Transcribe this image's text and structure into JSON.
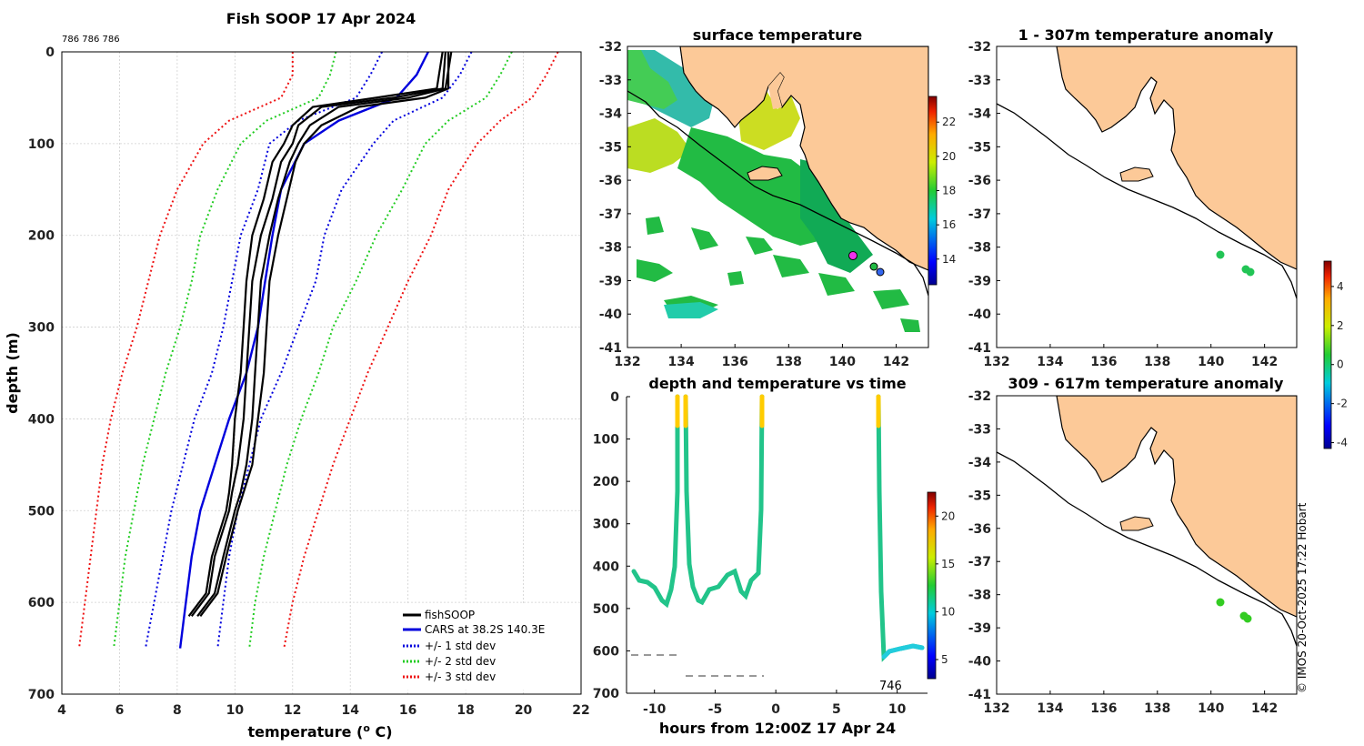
{
  "chart_data": [
    {
      "type": "line",
      "title": "Fish SOOP 17 Apr 2024",
      "annotation": "786 786 786",
      "xlabel": "temperature (",
      "xlabel_sup": "o",
      "xlabel_unit": " C)",
      "ylabel": "depth (m)",
      "xlim": [
        4,
        22
      ],
      "ylim": [
        700,
        0
      ],
      "xticks": [
        4,
        6,
        8,
        10,
        12,
        14,
        16,
        18,
        20,
        22
      ],
      "yticks": [
        0,
        100,
        200,
        300,
        400,
        500,
        600,
        700
      ],
      "grid": true,
      "legend_position": "bottom-right",
      "legend": [
        "fishSOOP",
        "CARS at 38.2S 140.3E",
        "+/- 1 std dev",
        "+/- 2 std dev",
        "+/- 3 std dev"
      ],
      "series": [
        {
          "name": "CARS mean",
          "depth": [
            0,
            25,
            50,
            75,
            100,
            150,
            200,
            250,
            300,
            350,
            400,
            450,
            500,
            550,
            600,
            650
          ],
          "values": [
            16.7,
            16.3,
            15.6,
            13.6,
            12.4,
            11.6,
            11.3,
            11.05,
            10.8,
            10.4,
            9.8,
            9.3,
            8.8,
            8.5,
            8.3,
            8.1
          ]
        },
        {
          "name": "-1 std",
          "depth": [
            0,
            25,
            50,
            75,
            100,
            150,
            200,
            250,
            300,
            350,
            400,
            450,
            500,
            550,
            600,
            650
          ],
          "values": [
            15.1,
            14.7,
            14.2,
            12.2,
            11.2,
            10.8,
            10.2,
            9.9,
            9.6,
            9.2,
            8.6,
            8.2,
            7.8,
            7.5,
            7.2,
            6.9
          ]
        },
        {
          "name": "+1 std",
          "depth": [
            0,
            25,
            50,
            75,
            100,
            150,
            200,
            250,
            300,
            350,
            400,
            450,
            500,
            550,
            600,
            650
          ],
          "values": [
            18.2,
            17.8,
            17.2,
            15.5,
            14.8,
            13.7,
            13.1,
            12.8,
            12.2,
            11.6,
            10.9,
            10.5,
            10.1,
            9.8,
            9.6,
            9.4
          ]
        },
        {
          "name": "-2 std",
          "depth": [
            0,
            25,
            50,
            75,
            100,
            150,
            200,
            250,
            300,
            350,
            400,
            450,
            500,
            550,
            600,
            650
          ],
          "values": [
            13.5,
            13.3,
            12.9,
            11.1,
            10.2,
            9.4,
            8.8,
            8.5,
            8.1,
            7.6,
            7.2,
            6.8,
            6.5,
            6.2,
            6.0,
            5.8
          ]
        },
        {
          "name": "+2 std",
          "depth": [
            0,
            25,
            50,
            75,
            100,
            150,
            200,
            250,
            300,
            350,
            400,
            450,
            500,
            550,
            600,
            650
          ],
          "values": [
            19.6,
            19.2,
            18.7,
            17.4,
            16.6,
            15.8,
            14.9,
            14.2,
            13.4,
            12.9,
            12.3,
            11.8,
            11.4,
            11.0,
            10.7,
            10.5
          ]
        },
        {
          "name": "-3 std",
          "depth": [
            0,
            25,
            50,
            75,
            100,
            150,
            200,
            250,
            300,
            350,
            400,
            450,
            500,
            550,
            600,
            650
          ],
          "values": [
            12.0,
            12.0,
            11.6,
            9.8,
            8.9,
            8.0,
            7.4,
            7.0,
            6.6,
            6.1,
            5.7,
            5.4,
            5.2,
            5.0,
            4.8,
            4.6
          ]
        },
        {
          "name": "+3 std",
          "depth": [
            0,
            25,
            50,
            75,
            100,
            150,
            200,
            250,
            300,
            350,
            400,
            450,
            500,
            550,
            600,
            650
          ],
          "values": [
            21.2,
            20.8,
            20.3,
            19.2,
            18.4,
            17.4,
            16.8,
            16.0,
            15.3,
            14.6,
            14.0,
            13.4,
            12.9,
            12.4,
            12.0,
            11.7
          ]
        },
        {
          "name": "fishSOOP 1",
          "depth": [
            0,
            40,
            50,
            60,
            80,
            100,
            120,
            160,
            200,
            250,
            300,
            350,
            400,
            450,
            480,
            500,
            550,
            590,
            615
          ],
          "values": [
            17.3,
            17.2,
            15.5,
            13.0,
            12.2,
            12.0,
            11.6,
            11.3,
            10.9,
            10.6,
            10.5,
            10.4,
            10.3,
            10.1,
            9.9,
            9.8,
            9.3,
            9.1,
            8.5
          ]
        },
        {
          "name": "fishSOOP 2",
          "depth": [
            0,
            40,
            50,
            60,
            80,
            100,
            120,
            160,
            200,
            250,
            300,
            350,
            400,
            450,
            480,
            500,
            550,
            590,
            615
          ],
          "values": [
            17.5,
            17.3,
            16.0,
            13.6,
            12.6,
            12.2,
            11.9,
            11.5,
            11.2,
            10.9,
            10.8,
            10.7,
            10.6,
            10.4,
            10.2,
            10.0,
            9.6,
            9.3,
            8.7
          ]
        },
        {
          "name": "fishSOOP 3",
          "depth": [
            0,
            40,
            50,
            60,
            80,
            100,
            120,
            160,
            200,
            250,
            300,
            350,
            400,
            450,
            480,
            500,
            550,
            590,
            615
          ],
          "values": [
            17.2,
            17.0,
            14.9,
            12.7,
            12.0,
            11.7,
            11.3,
            11.0,
            10.6,
            10.4,
            10.3,
            10.2,
            10.0,
            9.9,
            9.8,
            9.7,
            9.2,
            9.0,
            8.4
          ]
        },
        {
          "name": "fishSOOP 4",
          "depth": [
            0,
            40,
            50,
            60,
            80,
            100,
            120,
            160,
            200,
            250,
            300,
            350,
            400,
            450,
            480,
            500,
            550,
            590,
            615
          ],
          "values": [
            17.4,
            17.4,
            16.6,
            14.3,
            13.0,
            12.4,
            12.1,
            11.8,
            11.5,
            11.2,
            11.1,
            11.0,
            10.8,
            10.6,
            10.3,
            10.1,
            9.7,
            9.4,
            8.8
          ]
        }
      ]
    },
    {
      "type": "heatmap",
      "title": "surface temperature",
      "xticks": [
        132,
        134,
        136,
        138,
        140,
        142
      ],
      "yticks": [
        -32,
        -33,
        -34,
        -35,
        -36,
        -37,
        -38,
        -39,
        -40,
        -41
      ],
      "xlim": [
        132,
        143.2
      ],
      "ylim": [
        -41,
        -32
      ],
      "colorbar_ticks": [
        14,
        16,
        18,
        20,
        22
      ],
      "colorbar_range": [
        12.5,
        23.5
      ]
    },
    {
      "type": "scatter",
      "title": "depth and temperature vs time",
      "xlabel": "hours from 12:00Z 17 Apr 24",
      "xticks": [
        -10,
        -5,
        0,
        5,
        10
      ],
      "yticks": [
        0,
        100,
        200,
        300,
        400,
        500,
        600,
        700
      ],
      "xlim": [
        -12.3,
        12.5
      ],
      "ylim": [
        700,
        0
      ],
      "annotation": "746",
      "colorbar_ticks": [
        5,
        10,
        15,
        20
      ],
      "colorbar_range": [
        3,
        22.5
      ]
    },
    {
      "type": "scatter",
      "title": "1 - 307m temperature anomaly",
      "xticks": [
        132,
        134,
        136,
        138,
        140,
        142
      ],
      "yticks": [
        -32,
        -33,
        -34,
        -35,
        -36,
        -37,
        -38,
        -39,
        -40,
        -41
      ],
      "xlim": [
        132,
        143.2
      ],
      "ylim": [
        -41,
        -32
      ],
      "points": [
        {
          "lon": 140.3,
          "lat": -38.2
        },
        {
          "lon": 141.2,
          "lat": -38.6
        },
        {
          "lon": 141.4,
          "lat": -38.7
        }
      ]
    },
    {
      "type": "scatter",
      "title": "309 - 617m temperature anomaly",
      "xticks": [
        132,
        134,
        136,
        138,
        140,
        142
      ],
      "yticks": [
        -32,
        -33,
        -34,
        -35,
        -36,
        -37,
        -38,
        -39,
        -40,
        -41
      ],
      "xlim": [
        132,
        143.2
      ],
      "ylim": [
        -41,
        -32
      ],
      "points": [
        {
          "lon": 140.3,
          "lat": -38.2
        },
        {
          "lon": 141.2,
          "lat": -38.6
        },
        {
          "lon": 141.4,
          "lat": -38.7
        }
      ],
      "anomaly_colorbar_ticks": [
        4,
        2,
        0,
        -2,
        -4
      ],
      "anomaly_colorbar_range": [
        -4.3,
        5.3
      ]
    }
  ],
  "footer": {
    "credit": "© IMOS 20-Oct-2025 17:22 Hobart"
  },
  "colors": {
    "fish": "#000000",
    "cars": "#0000dd",
    "std1": "#0000dd",
    "std2": "#22cc22",
    "std3": "#ee1111",
    "land": "#fcc998"
  }
}
